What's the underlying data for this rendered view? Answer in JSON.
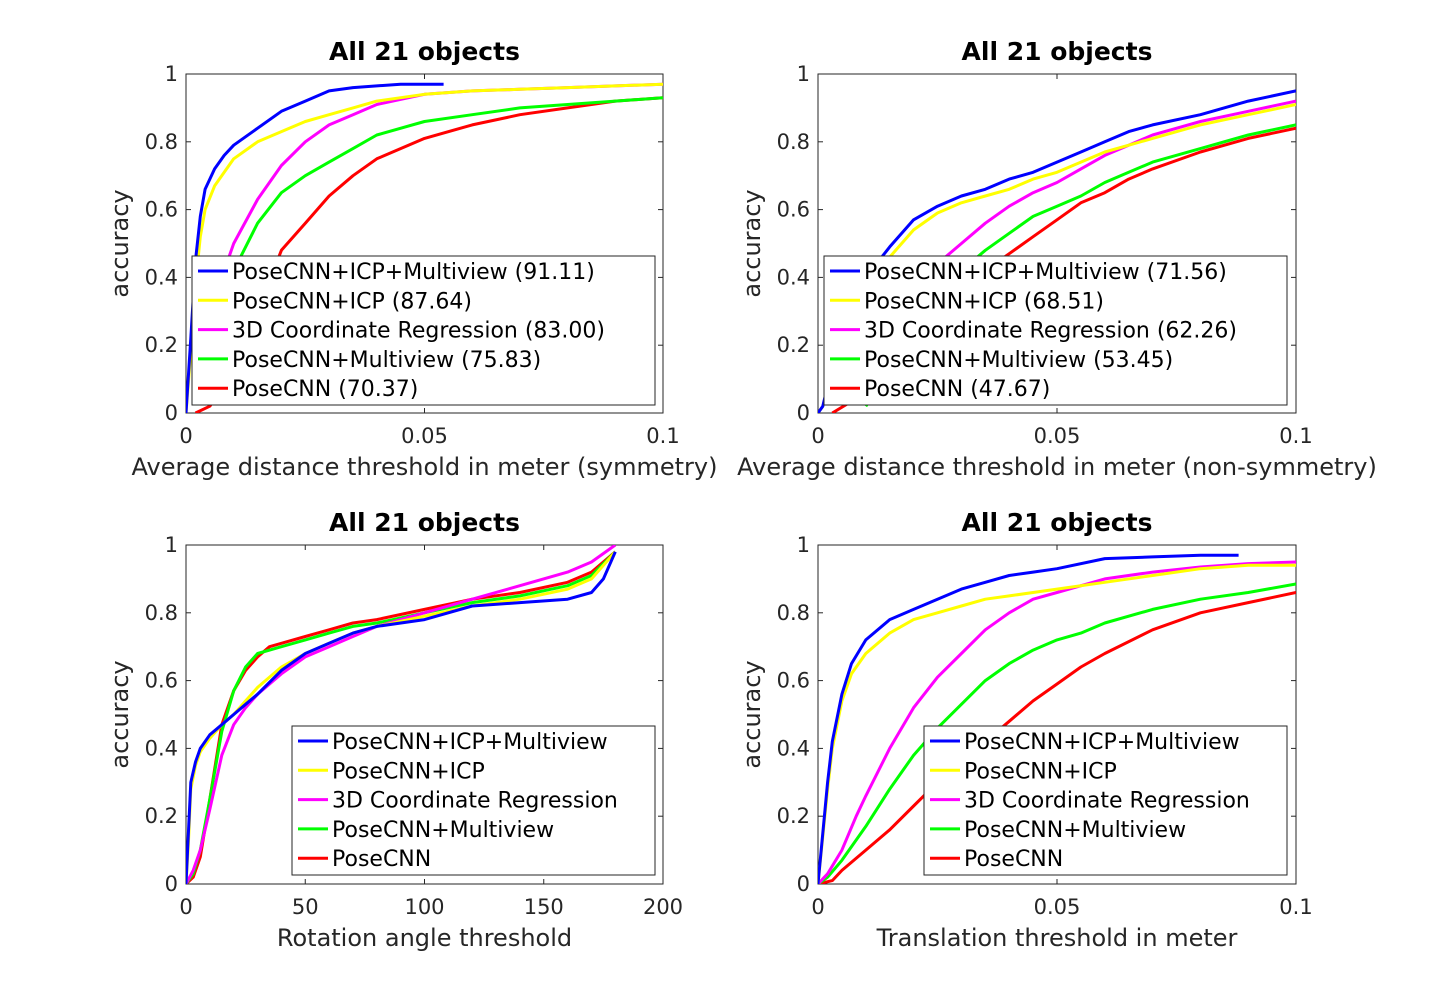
{
  "chart_data": [
    {
      "type": "line",
      "title": "All 21 objects",
      "xlabel": "Average distance threshold in meter (symmetry)",
      "ylabel": "accuracy",
      "xlim": [
        0,
        0.1
      ],
      "ylim": [
        0,
        1
      ],
      "xticks": [
        "0",
        "0.05",
        "0.1"
      ],
      "yticks": [
        "0",
        "0.2",
        "0.4",
        "0.6",
        "0.8",
        "1"
      ],
      "legend_position": "bottom",
      "series": [
        {
          "name": "PoseCNN+ICP+Multiview (91.11)",
          "color": "#0000ff",
          "x": [
            0,
            0.001,
            0.002,
            0.003,
            0.004,
            0.006,
            0.008,
            0.01,
            0.015,
            0.02,
            0.025,
            0.03,
            0.035,
            0.04,
            0.045,
            0.05,
            0.054
          ],
          "y": [
            0,
            0.22,
            0.45,
            0.58,
            0.66,
            0.72,
            0.76,
            0.79,
            0.84,
            0.89,
            0.92,
            0.95,
            0.96,
            0.965,
            0.97,
            0.97,
            0.97
          ]
        },
        {
          "name": "PoseCNN+ICP (87.64)",
          "color": "#ffff00",
          "x": [
            0,
            0.001,
            0.002,
            0.003,
            0.004,
            0.006,
            0.008,
            0.01,
            0.015,
            0.02,
            0.025,
            0.03,
            0.035,
            0.04,
            0.05,
            0.06,
            0.07,
            0.08,
            0.09,
            0.1
          ],
          "y": [
            0,
            0.18,
            0.38,
            0.52,
            0.6,
            0.67,
            0.71,
            0.75,
            0.8,
            0.83,
            0.86,
            0.88,
            0.9,
            0.92,
            0.94,
            0.95,
            0.955,
            0.96,
            0.965,
            0.97
          ]
        },
        {
          "name": "3D Coordinate Regression (83.00)",
          "color": "#ff00ff",
          "x": [
            0.004,
            0.008,
            0.01,
            0.015,
            0.02,
            0.025,
            0.03,
            0.035,
            0.04,
            0.05,
            0.06,
            0.07,
            0.08,
            0.09,
            0.1
          ],
          "y": [
            0.3,
            0.42,
            0.5,
            0.63,
            0.73,
            0.8,
            0.85,
            0.88,
            0.91,
            0.94,
            0.95,
            0.955,
            0.96,
            0.965,
            0.97
          ]
        },
        {
          "name": "PoseCNN+Multiview (75.83)",
          "color": "#00ff00",
          "x": [
            0.008,
            0.01,
            0.015,
            0.02,
            0.025,
            0.03,
            0.035,
            0.04,
            0.05,
            0.06,
            0.07,
            0.08,
            0.09,
            0.1
          ],
          "y": [
            0.32,
            0.42,
            0.56,
            0.65,
            0.7,
            0.74,
            0.78,
            0.82,
            0.86,
            0.88,
            0.9,
            0.91,
            0.92,
            0.93
          ]
        },
        {
          "name": "PoseCNN (70.37)",
          "color": "#ff0000",
          "x": [
            0.002,
            0.005,
            0.01,
            0.015,
            0.02,
            0.025,
            0.03,
            0.035,
            0.04,
            0.05,
            0.06,
            0.07,
            0.08,
            0.09,
            0.1
          ],
          "y": [
            0,
            0.02,
            0.12,
            0.3,
            0.48,
            0.56,
            0.64,
            0.7,
            0.75,
            0.81,
            0.85,
            0.88,
            0.9,
            0.92,
            0.93
          ]
        }
      ]
    },
    {
      "type": "line",
      "title": "All 21 objects",
      "xlabel": "Average distance threshold in meter (non-symmetry)",
      "ylabel": "accuracy",
      "xlim": [
        0,
        0.1
      ],
      "ylim": [
        0,
        1
      ],
      "xticks": [
        "0",
        "0.05",
        "0.1"
      ],
      "yticks": [
        "0",
        "0.2",
        "0.4",
        "0.6",
        "0.8",
        "1"
      ],
      "legend_position": "bottom",
      "series": [
        {
          "name": "PoseCNN+ICP+Multiview (71.56)",
          "color": "#0000ff",
          "x": [
            0,
            0.001,
            0.002,
            0.004,
            0.006,
            0.008,
            0.01,
            0.015,
            0.02,
            0.025,
            0.03,
            0.035,
            0.04,
            0.045,
            0.05,
            0.055,
            0.06,
            0.065,
            0.07,
            0.08,
            0.09,
            0.1
          ],
          "y": [
            0,
            0.02,
            0.08,
            0.17,
            0.26,
            0.34,
            0.4,
            0.49,
            0.57,
            0.61,
            0.64,
            0.66,
            0.69,
            0.71,
            0.74,
            0.77,
            0.8,
            0.83,
            0.85,
            0.88,
            0.92,
            0.95
          ]
        },
        {
          "name": "PoseCNN+ICP (68.51)",
          "color": "#ffff00",
          "x": [
            0,
            0.001,
            0.002,
            0.004,
            0.006,
            0.008,
            0.01,
            0.015,
            0.02,
            0.025,
            0.03,
            0.035,
            0.04,
            0.045,
            0.05,
            0.055,
            0.06,
            0.065,
            0.07,
            0.08,
            0.09,
            0.1
          ],
          "y": [
            0,
            0.02,
            0.07,
            0.15,
            0.23,
            0.3,
            0.37,
            0.46,
            0.54,
            0.59,
            0.62,
            0.64,
            0.66,
            0.69,
            0.71,
            0.74,
            0.77,
            0.79,
            0.81,
            0.85,
            0.88,
            0.91
          ]
        },
        {
          "name": "3D Coordinate Regression (62.26)",
          "color": "#ff00ff",
          "x": [
            0.005,
            0.01,
            0.015,
            0.02,
            0.025,
            0.03,
            0.035,
            0.04,
            0.045,
            0.05,
            0.055,
            0.06,
            0.065,
            0.07,
            0.08,
            0.09,
            0.1
          ],
          "y": [
            0.1,
            0.2,
            0.28,
            0.36,
            0.44,
            0.5,
            0.56,
            0.61,
            0.65,
            0.68,
            0.72,
            0.76,
            0.79,
            0.82,
            0.86,
            0.89,
            0.92
          ]
        },
        {
          "name": "PoseCNN+Multiview (53.45)",
          "color": "#00ff00",
          "x": [
            0.01,
            0.015,
            0.02,
            0.025,
            0.03,
            0.035,
            0.04,
            0.045,
            0.05,
            0.055,
            0.06,
            0.065,
            0.07,
            0.08,
            0.09,
            0.1
          ],
          "y": [
            0.02,
            0.12,
            0.22,
            0.32,
            0.42,
            0.48,
            0.53,
            0.58,
            0.61,
            0.64,
            0.68,
            0.71,
            0.74,
            0.78,
            0.82,
            0.85
          ]
        },
        {
          "name": "PoseCNN (47.67)",
          "color": "#ff0000",
          "x": [
            0.003,
            0.01,
            0.015,
            0.02,
            0.025,
            0.03,
            0.035,
            0.04,
            0.045,
            0.05,
            0.055,
            0.06,
            0.065,
            0.07,
            0.08,
            0.09,
            0.1
          ],
          "y": [
            0,
            0.06,
            0.14,
            0.22,
            0.3,
            0.37,
            0.42,
            0.47,
            0.52,
            0.57,
            0.62,
            0.65,
            0.69,
            0.72,
            0.77,
            0.81,
            0.84
          ]
        }
      ]
    },
    {
      "type": "line",
      "title": "All 21 objects",
      "xlabel": "Rotation angle threshold",
      "ylabel": "accuracy",
      "xlim": [
        0,
        200
      ],
      "ylim": [
        0,
        1
      ],
      "xticks": [
        "0",
        "50",
        "100",
        "150",
        "200"
      ],
      "yticks": [
        "0",
        "0.2",
        "0.4",
        "0.6",
        "0.8",
        "1"
      ],
      "legend_position": "bottom-right",
      "series": [
        {
          "name": "PoseCNN+ICP+Multiview",
          "color": "#0000ff",
          "x": [
            0,
            1,
            2,
            4,
            6,
            10,
            15,
            20,
            25,
            30,
            40,
            50,
            60,
            70,
            80,
            100,
            120,
            140,
            160,
            170,
            175,
            180
          ],
          "y": [
            0,
            0.15,
            0.3,
            0.36,
            0.4,
            0.44,
            0.47,
            0.5,
            0.53,
            0.56,
            0.63,
            0.68,
            0.71,
            0.74,
            0.76,
            0.78,
            0.82,
            0.83,
            0.84,
            0.86,
            0.9,
            0.98
          ]
        },
        {
          "name": "PoseCNN+ICP",
          "color": "#ffff00",
          "x": [
            0,
            1,
            2,
            4,
            6,
            10,
            15,
            20,
            25,
            30,
            40,
            50,
            60,
            70,
            80,
            100,
            120,
            140,
            160,
            170,
            180
          ],
          "y": [
            0,
            0.12,
            0.28,
            0.35,
            0.39,
            0.43,
            0.47,
            0.5,
            0.54,
            0.58,
            0.64,
            0.68,
            0.71,
            0.74,
            0.76,
            0.79,
            0.82,
            0.84,
            0.87,
            0.9,
            0.98
          ]
        },
        {
          "name": "3D Coordinate Regression",
          "color": "#ff00ff",
          "x": [
            0,
            3,
            6,
            10,
            15,
            20,
            25,
            30,
            40,
            50,
            60,
            70,
            80,
            100,
            120,
            140,
            160,
            170,
            180
          ],
          "y": [
            0,
            0.04,
            0.1,
            0.22,
            0.38,
            0.47,
            0.52,
            0.56,
            0.62,
            0.67,
            0.7,
            0.73,
            0.76,
            0.8,
            0.84,
            0.88,
            0.92,
            0.95,
            1.0
          ]
        },
        {
          "name": "PoseCNN+Multiview",
          "color": "#00ff00",
          "x": [
            0,
            3,
            6,
            10,
            15,
            20,
            25,
            30,
            40,
            50,
            60,
            70,
            80,
            100,
            120,
            140,
            160,
            170,
            180
          ],
          "y": [
            0,
            0.03,
            0.1,
            0.25,
            0.45,
            0.57,
            0.64,
            0.68,
            0.7,
            0.72,
            0.74,
            0.76,
            0.77,
            0.8,
            0.83,
            0.85,
            0.88,
            0.91,
            0.98
          ]
        },
        {
          "name": "PoseCNN",
          "color": "#ff0000",
          "x": [
            0,
            3,
            6,
            10,
            15,
            20,
            25,
            30,
            35,
            40,
            50,
            60,
            70,
            80,
            100,
            120,
            140,
            160,
            170,
            180
          ],
          "y": [
            0,
            0.02,
            0.08,
            0.25,
            0.47,
            0.57,
            0.63,
            0.67,
            0.7,
            0.71,
            0.73,
            0.75,
            0.77,
            0.78,
            0.81,
            0.84,
            0.86,
            0.89,
            0.92,
            0.98
          ]
        }
      ]
    },
    {
      "type": "line",
      "title": "All 21 objects",
      "xlabel": "Translation threshold in meter",
      "ylabel": "accuracy",
      "xlim": [
        0,
        0.1
      ],
      "ylim": [
        0,
        1
      ],
      "xticks": [
        "0",
        "0.05",
        "0.1"
      ],
      "yticks": [
        "0",
        "0.2",
        "0.4",
        "0.6",
        "0.8",
        "1"
      ],
      "legend_position": "bottom-right",
      "series": [
        {
          "name": "PoseCNN+ICP+Multiview",
          "color": "#0000ff",
          "x": [
            0,
            0.001,
            0.002,
            0.003,
            0.005,
            0.007,
            0.01,
            0.015,
            0.02,
            0.025,
            0.03,
            0.035,
            0.04,
            0.045,
            0.05,
            0.06,
            0.07,
            0.08,
            0.088
          ],
          "y": [
            0,
            0.15,
            0.3,
            0.42,
            0.56,
            0.65,
            0.72,
            0.78,
            0.81,
            0.84,
            0.87,
            0.89,
            0.91,
            0.92,
            0.93,
            0.96,
            0.965,
            0.97,
            0.97
          ]
        },
        {
          "name": "PoseCNN+ICP",
          "color": "#ffff00",
          "x": [
            0,
            0.001,
            0.002,
            0.003,
            0.005,
            0.007,
            0.01,
            0.015,
            0.02,
            0.025,
            0.03,
            0.035,
            0.04,
            0.045,
            0.05,
            0.06,
            0.07,
            0.08,
            0.09,
            0.1
          ],
          "y": [
            0,
            0.14,
            0.28,
            0.4,
            0.54,
            0.62,
            0.68,
            0.74,
            0.78,
            0.8,
            0.82,
            0.84,
            0.85,
            0.86,
            0.87,
            0.89,
            0.91,
            0.93,
            0.94,
            0.94
          ]
        },
        {
          "name": "3D Coordinate Regression",
          "color": "#ff00ff",
          "x": [
            0,
            0.002,
            0.005,
            0.008,
            0.01,
            0.015,
            0.02,
            0.025,
            0.03,
            0.035,
            0.04,
            0.045,
            0.05,
            0.06,
            0.07,
            0.08,
            0.09,
            0.1
          ],
          "y": [
            0,
            0.03,
            0.1,
            0.2,
            0.26,
            0.4,
            0.52,
            0.61,
            0.68,
            0.75,
            0.8,
            0.84,
            0.86,
            0.9,
            0.92,
            0.935,
            0.945,
            0.95
          ]
        },
        {
          "name": "PoseCNN+Multiview",
          "color": "#00ff00",
          "x": [
            0,
            0.002,
            0.005,
            0.01,
            0.015,
            0.02,
            0.025,
            0.03,
            0.035,
            0.04,
            0.045,
            0.05,
            0.055,
            0.06,
            0.07,
            0.08,
            0.09,
            0.1
          ],
          "y": [
            0,
            0.02,
            0.07,
            0.17,
            0.28,
            0.38,
            0.46,
            0.53,
            0.6,
            0.65,
            0.69,
            0.72,
            0.74,
            0.77,
            0.81,
            0.84,
            0.86,
            0.885
          ]
        },
        {
          "name": "PoseCNN",
          "color": "#ff0000",
          "x": [
            0,
            0.003,
            0.005,
            0.01,
            0.015,
            0.02,
            0.025,
            0.03,
            0.035,
            0.04,
            0.045,
            0.05,
            0.055,
            0.06,
            0.07,
            0.08,
            0.09,
            0.1
          ],
          "y": [
            0,
            0.01,
            0.04,
            0.1,
            0.16,
            0.23,
            0.3,
            0.36,
            0.42,
            0.48,
            0.54,
            0.59,
            0.64,
            0.68,
            0.75,
            0.8,
            0.83,
            0.86
          ]
        }
      ]
    }
  ]
}
